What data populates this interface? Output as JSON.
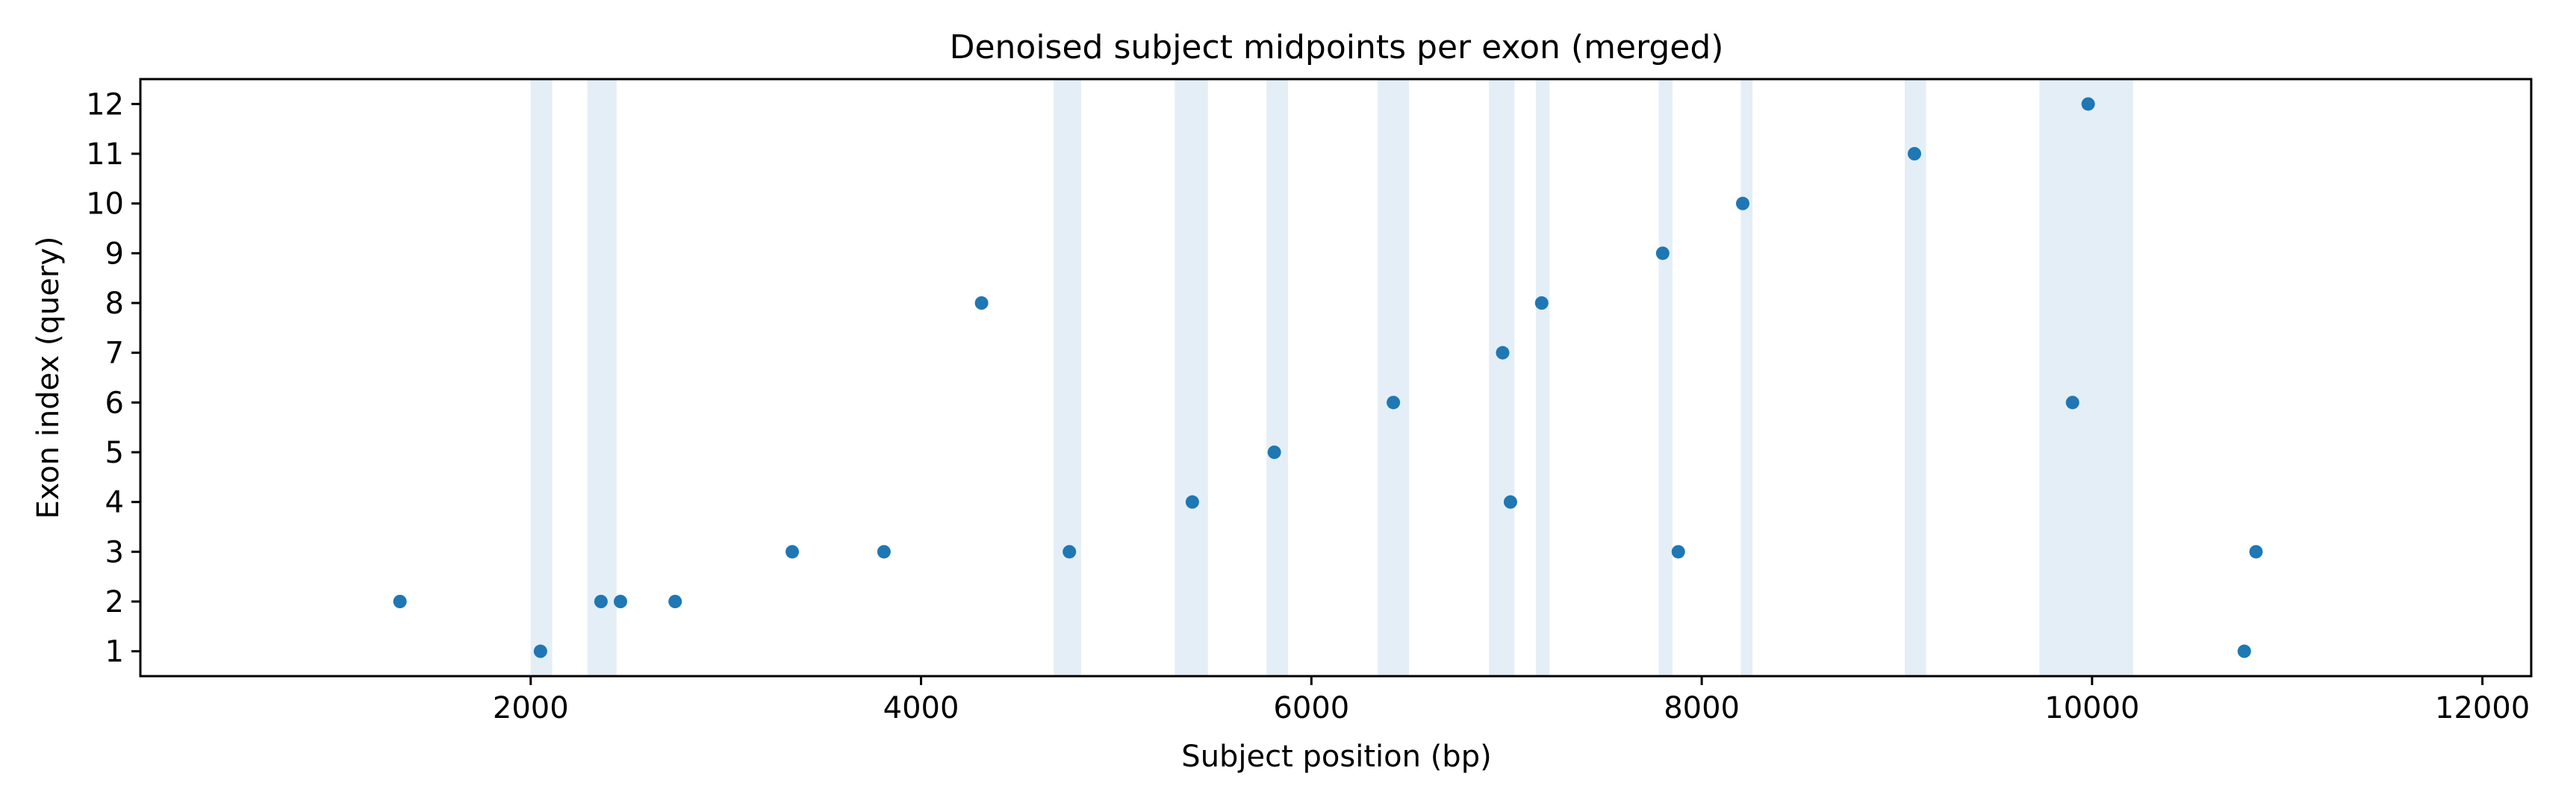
{
  "chart_data": {
    "type": "scatter",
    "title": "Denoised subject midpoints per exon (merged)",
    "xlabel": "Subject position (bp)",
    "ylabel": "Exon index (query)",
    "xlim": [
      0,
      12250
    ],
    "ylim": [
      0.5,
      12.5
    ],
    "xticks": [
      2000,
      4000,
      6000,
      8000,
      10000,
      12000
    ],
    "yticks": [
      1,
      2,
      3,
      4,
      5,
      6,
      7,
      8,
      9,
      10,
      11,
      12
    ],
    "grid": false,
    "point_color": "#1f77b4",
    "band_color": "#1f77b4",
    "bands": [
      [
        2000,
        2110
      ],
      [
        2290,
        2440
      ],
      [
        4680,
        4820
      ],
      [
        5300,
        5470
      ],
      [
        5770,
        5880
      ],
      [
        6340,
        6500
      ],
      [
        6910,
        7040
      ],
      [
        7150,
        7220
      ],
      [
        7780,
        7850
      ],
      [
        8200,
        8260
      ],
      [
        9040,
        9150
      ],
      [
        9730,
        10210
      ]
    ],
    "points": [
      {
        "x": 1330,
        "y": 2
      },
      {
        "x": 2050,
        "y": 1
      },
      {
        "x": 2360,
        "y": 2
      },
      {
        "x": 2460,
        "y": 2
      },
      {
        "x": 2740,
        "y": 2
      },
      {
        "x": 3340,
        "y": 3
      },
      {
        "x": 3810,
        "y": 3
      },
      {
        "x": 4310,
        "y": 8
      },
      {
        "x": 4760,
        "y": 3
      },
      {
        "x": 5390,
        "y": 4
      },
      {
        "x": 5810,
        "y": 5
      },
      {
        "x": 6420,
        "y": 6
      },
      {
        "x": 6980,
        "y": 7
      },
      {
        "x": 7020,
        "y": 4
      },
      {
        "x": 7180,
        "y": 8
      },
      {
        "x": 7800,
        "y": 9
      },
      {
        "x": 7880,
        "y": 3
      },
      {
        "x": 8210,
        "y": 10
      },
      {
        "x": 9090,
        "y": 11
      },
      {
        "x": 9900,
        "y": 6
      },
      {
        "x": 9980,
        "y": 12
      },
      {
        "x": 10780,
        "y": 1
      },
      {
        "x": 10840,
        "y": 3
      }
    ]
  }
}
